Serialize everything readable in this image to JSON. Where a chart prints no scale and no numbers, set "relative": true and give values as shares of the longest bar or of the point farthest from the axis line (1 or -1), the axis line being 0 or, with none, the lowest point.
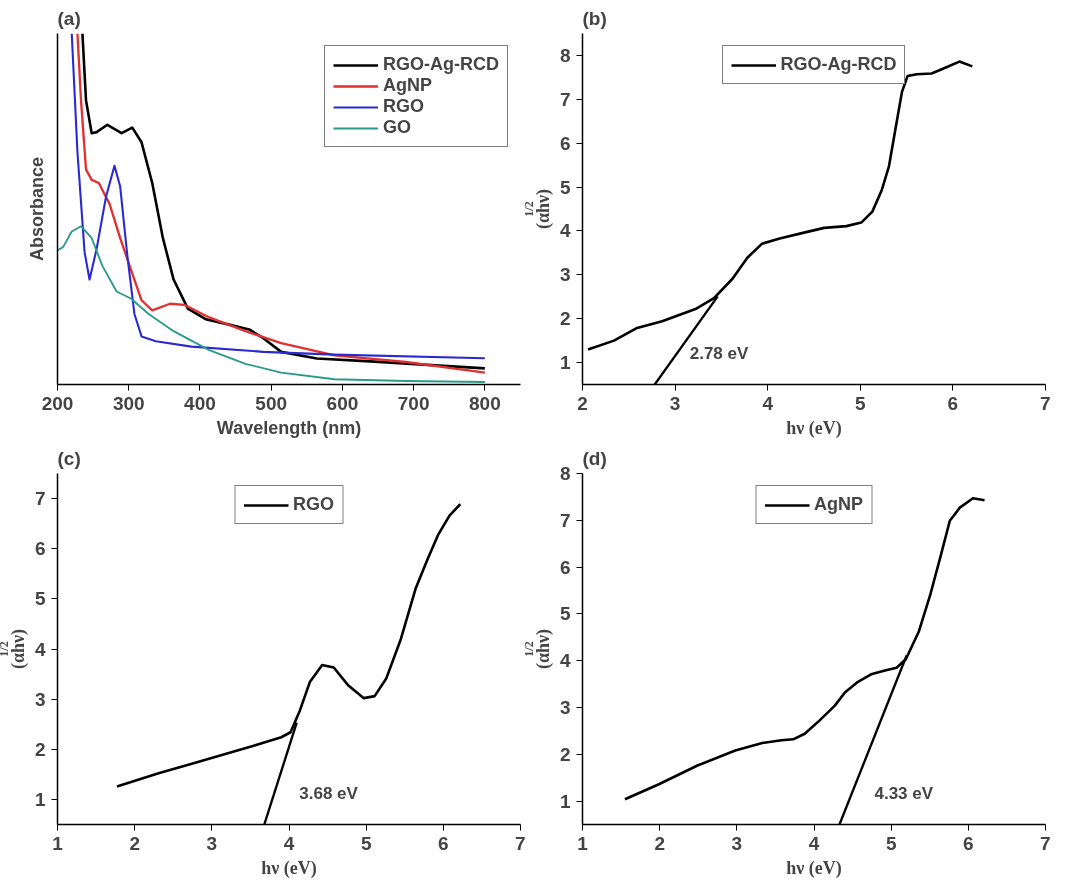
{
  "chart_data": [
    {
      "type": "line",
      "title": "(a)",
      "xlabel": "Wavelength (nm)",
      "ylabel": "Absorbance",
      "relative": true,
      "xlim": [
        200,
        850
      ],
      "xticks": [
        200,
        300,
        400,
        500,
        600,
        700,
        800
      ],
      "legend": "top right",
      "series": [
        {
          "name": "RGO-Ag-RCD",
          "color": "#000000",
          "x": [
            235,
            240,
            248,
            255,
            270,
            290,
            305,
            318,
            333,
            348,
            363,
            383,
            408,
            438,
            469,
            489,
            514,
            564,
            639,
            800
          ],
          "values": [
            1.0,
            0.81,
            0.716,
            0.719,
            0.74,
            0.716,
            0.732,
            0.69,
            0.574,
            0.417,
            0.299,
            0.216,
            0.186,
            0.172,
            0.157,
            0.132,
            0.093,
            0.074,
            0.066,
            0.046
          ]
        },
        {
          "name": "AgNP",
          "color": "#e03030",
          "x": [
            228,
            233,
            240,
            248,
            258,
            273,
            288,
            303,
            318,
            333,
            358,
            378,
            413,
            464,
            514,
            589,
            689,
            800
          ],
          "values": [
            1.0,
            0.81,
            0.613,
            0.583,
            0.574,
            0.515,
            0.417,
            0.328,
            0.24,
            0.211,
            0.23,
            0.227,
            0.191,
            0.152,
            0.118,
            0.083,
            0.064,
            0.034
          ]
        },
        {
          "name": "RGO",
          "color": "#2a2ad0",
          "x": [
            220,
            228,
            238,
            245,
            255,
            268,
            280,
            288,
            298,
            308,
            318,
            338,
            388,
            489,
            589,
            800
          ],
          "values": [
            1.0,
            0.662,
            0.377,
            0.299,
            0.387,
            0.534,
            0.623,
            0.564,
            0.368,
            0.201,
            0.137,
            0.123,
            0.108,
            0.093,
            0.085,
            0.075
          ]
        },
        {
          "name": "GO",
          "color": "#2a9a8a",
          "x": [
            200,
            208,
            220,
            233,
            248,
            263,
            283,
            303,
            328,
            363,
            413,
            464,
            514,
            589,
            689,
            800
          ],
          "values": [
            0.382,
            0.392,
            0.436,
            0.451,
            0.417,
            0.338,
            0.265,
            0.245,
            0.201,
            0.152,
            0.098,
            0.059,
            0.034,
            0.015,
            0.01,
            0.007
          ]
        }
      ]
    },
    {
      "type": "line",
      "title": "(b)",
      "xlabel": "hν (eV)",
      "ylabel": "(αhν)$^{1/2}$",
      "xlim": [
        2,
        7
      ],
      "xticks": [
        2,
        3,
        4,
        5,
        6,
        7
      ],
      "ylim": [
        0.5,
        8.5
      ],
      "yticks": [
        1,
        2,
        3,
        4,
        5,
        6,
        7,
        8
      ],
      "legend": "top",
      "annotations": [
        {
          "text": "2.78 eV",
          "x": 2.78,
          "y": 0.5
        }
      ],
      "series": [
        {
          "name": "RGO-Ag-RCD",
          "color": "#000000",
          "x": [
            2.06,
            2.34,
            2.58,
            2.86,
            3.22,
            3.42,
            3.62,
            3.78,
            3.94,
            4.13,
            4.37,
            4.61,
            4.85,
            5.01,
            5.13,
            5.23,
            5.31,
            5.39,
            5.45,
            5.51,
            5.61,
            5.77,
            5.93,
            6.07,
            6.21
          ],
          "values": [
            1.3,
            1.5,
            1.78,
            1.94,
            2.22,
            2.47,
            2.91,
            3.39,
            3.71,
            3.83,
            3.95,
            4.07,
            4.11,
            4.19,
            4.44,
            4.92,
            5.48,
            6.45,
            7.17,
            7.53,
            7.57,
            7.59,
            7.73,
            7.86,
            7.75
          ]
        },
        {
          "type": "line",
          "color": "#000000",
          "x": [
            2.78,
            3.46
          ],
          "values": [
            0.5,
            2.51
          ]
        }
      ]
    },
    {
      "type": "line",
      "title": "(c)",
      "xlabel": "hν (eV)",
      "ylabel": "(αhν)$^{1/2}$",
      "xlim": [
        1,
        7
      ],
      "xticks": [
        1,
        2,
        3,
        4,
        5,
        6,
        7
      ],
      "ylim": [
        0.5,
        7.5
      ],
      "yticks": [
        1,
        2,
        3,
        4,
        5,
        6,
        7
      ],
      "legend": "top",
      "annotations": [
        {
          "text": "3.68 eV",
          "x": 3.68,
          "y": 0.5
        }
      ],
      "series": [
        {
          "name": "RGO",
          "color": "#000000",
          "x": [
            1.77,
            2.31,
            3.03,
            3.52,
            3.9,
            4.02,
            4.14,
            4.27,
            4.43,
            4.58,
            4.77,
            4.97,
            5.11,
            5.26,
            5.45,
            5.64,
            5.79,
            5.93,
            6.08,
            6.22
          ],
          "values": [
            1.26,
            1.52,
            1.84,
            2.06,
            2.24,
            2.34,
            2.77,
            3.34,
            3.68,
            3.63,
            3.27,
            3.02,
            3.06,
            3.41,
            4.2,
            5.2,
            5.77,
            6.27,
            6.66,
            6.89
          ]
        },
        {
          "type": "line",
          "color": "#000000",
          "x": [
            3.68,
            4.1
          ],
          "values": [
            0.5,
            2.53
          ]
        }
      ]
    },
    {
      "type": "line",
      "title": "(d)",
      "xlabel": "hν (eV)",
      "ylabel": "(αhν)$^{1/2}$",
      "xlim": [
        1,
        7
      ],
      "xticks": [
        1,
        2,
        3,
        4,
        5,
        6,
        7
      ],
      "ylim": [
        0.5,
        8
      ],
      "yticks": [
        1,
        2,
        3,
        4,
        5,
        6,
        7,
        8
      ],
      "legend": "top",
      "annotations": [
        {
          "text": "4.33 eV",
          "x": 4.33,
          "y": 0.5
        }
      ],
      "series": [
        {
          "name": "AgNP",
          "color": "#000000",
          "x": [
            1.55,
            1.99,
            2.49,
            2.98,
            3.33,
            3.58,
            3.73,
            3.88,
            4.07,
            4.27,
            4.4,
            4.57,
            4.74,
            4.92,
            5.07,
            5.19,
            5.36,
            5.51,
            5.64,
            5.76,
            5.89,
            6.06,
            6.21
          ],
          "values": [
            1.04,
            1.36,
            1.76,
            2.08,
            2.24,
            2.3,
            2.32,
            2.44,
            2.72,
            3.04,
            3.32,
            3.55,
            3.71,
            3.79,
            3.85,
            4.03,
            4.63,
            5.43,
            6.23,
            6.99,
            7.27,
            7.47,
            7.43
          ]
        },
        {
          "type": "line",
          "color": "#000000",
          "x": [
            4.33,
            5.2
          ],
          "values": [
            0.5,
            4.11
          ]
        }
      ]
    }
  ]
}
